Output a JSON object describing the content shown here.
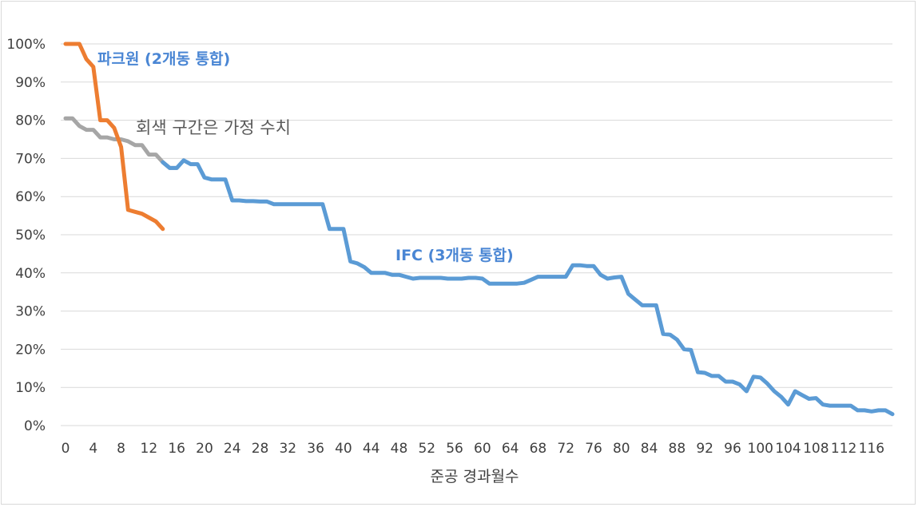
{
  "chart_data": {
    "type": "line",
    "xlabel": "준공 경과월수",
    "ylabel": "",
    "xlim": [
      0,
      120
    ],
    "ylim": [
      0,
      100
    ],
    "y_ticks": [
      0,
      10,
      20,
      30,
      40,
      50,
      60,
      70,
      80,
      90,
      100
    ],
    "y_tick_labels": [
      "0%",
      "10%",
      "20%",
      "30%",
      "40%",
      "50%",
      "60%",
      "70%",
      "80%",
      "90%",
      "100%"
    ],
    "x_ticks": [
      0,
      4,
      8,
      12,
      16,
      20,
      24,
      28,
      32,
      36,
      40,
      44,
      48,
      52,
      56,
      60,
      64,
      68,
      72,
      76,
      80,
      84,
      88,
      92,
      96,
      100,
      104,
      108,
      112,
      116
    ],
    "grid": "horizontal",
    "colors": {
      "gray": "#a6a6a6",
      "orange": "#ed7d31",
      "blue": "#5b9bd5",
      "label_blue": "#4a86d4"
    },
    "annotations": [
      {
        "text": "파크원 (2개동 통합)",
        "series": "orange"
      },
      {
        "text": "회색 구간은 가정 수치",
        "series": "gray"
      },
      {
        "text": "IFC (3개동 통합)",
        "series": "blue"
      }
    ],
    "series": [
      {
        "id": "gray",
        "x": [
          0,
          1,
          2,
          3,
          4,
          5,
          6,
          7,
          8,
          9,
          10,
          11,
          12,
          13,
          14,
          15,
          16
        ],
        "values": [
          80.5,
          80.5,
          78.5,
          77.5,
          77.5,
          75.5,
          75.5,
          75,
          75,
          74.5,
          73.5,
          73.5,
          71,
          71,
          69,
          67.5,
          67.5
        ]
      },
      {
        "id": "orange",
        "x": [
          0,
          1,
          2,
          3,
          4,
          5,
          6,
          7,
          8,
          9,
          10,
          11,
          12,
          13,
          14
        ],
        "values": [
          100,
          100,
          100,
          96,
          94,
          80,
          80,
          78,
          73,
          56.5,
          56,
          55.5,
          54.5,
          53.5,
          51.5
        ]
      },
      {
        "id": "blue",
        "x": [
          14,
          15,
          16,
          17,
          18,
          19,
          20,
          21,
          22,
          23,
          24,
          25,
          26,
          27,
          28,
          29,
          30,
          31,
          32,
          33,
          34,
          35,
          36,
          37,
          38,
          39,
          40,
          41,
          42,
          43,
          44,
          45,
          46,
          47,
          48,
          49,
          50,
          51,
          52,
          53,
          54,
          55,
          56,
          57,
          58,
          59,
          60,
          61,
          62,
          63,
          64,
          65,
          66,
          67,
          68,
          69,
          70,
          71,
          72,
          73,
          74,
          75,
          76,
          77,
          78,
          79,
          80,
          81,
          82,
          83,
          84,
          85,
          86,
          87,
          88,
          89,
          90,
          91,
          92,
          93,
          94,
          95,
          96,
          97,
          98,
          99,
          100,
          101,
          102,
          103,
          104,
          105,
          106,
          107,
          108,
          109,
          110,
          111,
          112,
          113,
          114,
          115,
          116,
          117,
          118,
          119
        ],
        "values": [
          69,
          67.5,
          67.5,
          69.5,
          68.5,
          68.5,
          65,
          64.5,
          64.5,
          64.5,
          59,
          59,
          58.8,
          58.8,
          58.7,
          58.7,
          58,
          58,
          58,
          58,
          58,
          58,
          58,
          58,
          51.5,
          51.5,
          51.5,
          43,
          42.5,
          41.5,
          40,
          40,
          40,
          39.5,
          39.5,
          39,
          38.5,
          38.7,
          38.7,
          38.7,
          38.7,
          38.5,
          38.5,
          38.5,
          38.7,
          38.7,
          38.5,
          37.2,
          37.2,
          37.2,
          37.2,
          37.2,
          37.4,
          38.2,
          39,
          39,
          39,
          39,
          39,
          42,
          42,
          41.8,
          41.8,
          39.5,
          38.5,
          38.8,
          39,
          34.5,
          33,
          31.5,
          31.5,
          31.5,
          24,
          23.8,
          22.5,
          20,
          19.8,
          14,
          13.8,
          13,
          13,
          11.5,
          11.5,
          10.8,
          9,
          12.8,
          12.6,
          11,
          9,
          7.5,
          5.5,
          9,
          8,
          7,
          7.2,
          5.5,
          5.2,
          5.2,
          5.2,
          5.2,
          4,
          4,
          3.7,
          4,
          4,
          3
        ]
      }
    ]
  }
}
